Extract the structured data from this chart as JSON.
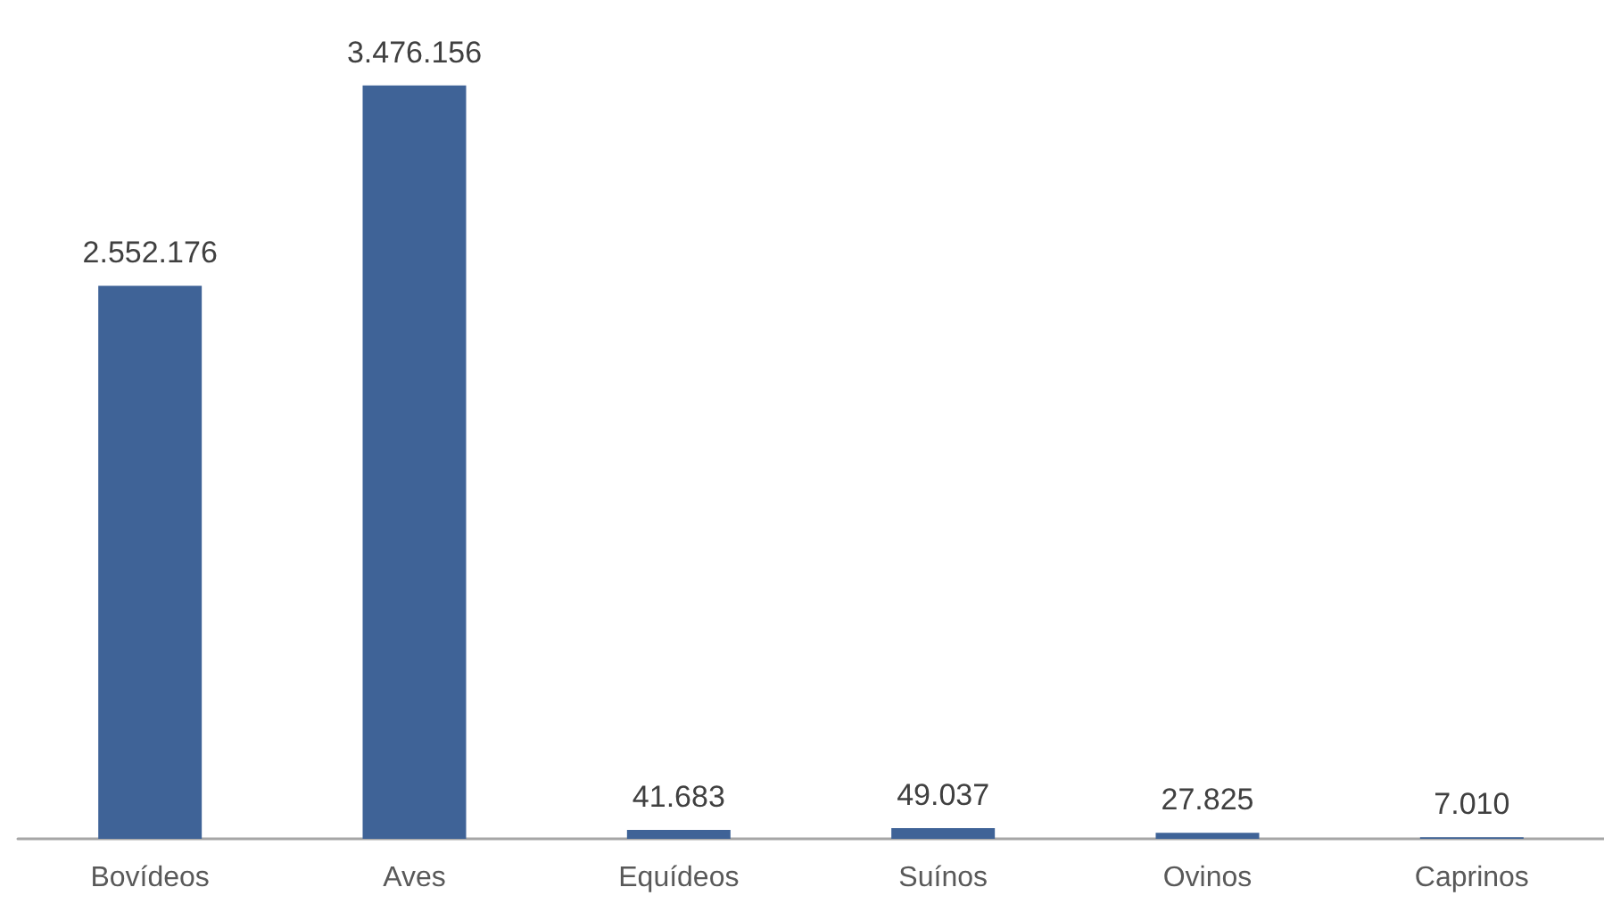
{
  "chart_data": {
    "type": "bar",
    "categories": [
      "Bovídeos",
      "Aves",
      "Equídeos",
      "Suínos",
      "Ovinos",
      "Caprinos"
    ],
    "values": [
      2552176,
      3476156,
      41683,
      49037,
      27825,
      7010
    ],
    "value_labels": [
      "2.552.176",
      "3.476.156",
      "41.683",
      "49.037",
      "27.825",
      "7.010"
    ],
    "color": "#3f6397"
  }
}
